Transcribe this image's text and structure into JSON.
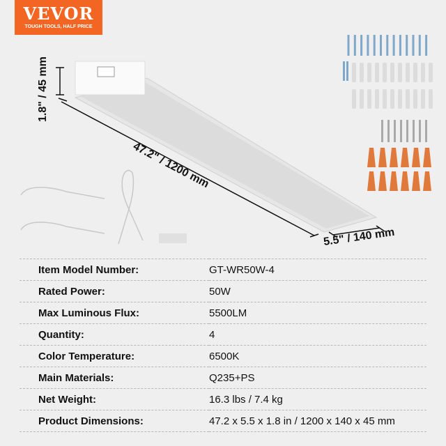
{
  "logo": {
    "brand": "VEVOR",
    "tagline": "TOUGH TOOLS, HALF PRICE",
    "color": "#f26522"
  },
  "dimensions": {
    "height": "1.8\" / 45 mm",
    "length": "47.2\" / 1200 mm",
    "width": "5.5\" / 140 mm"
  },
  "specs": [
    {
      "label": "Item Model Number:",
      "value": "GT-WR50W-4"
    },
    {
      "label": "Rated Power:",
      "value": "50W"
    },
    {
      "label": "Max Luminous Flux:",
      "value": "5500LM"
    },
    {
      "label": "Quantity:",
      "value": "4"
    },
    {
      "label": "Color Temperature:",
      "value": "6500K"
    },
    {
      "label": "Main Materials:",
      "value": "Q235+PS"
    },
    {
      "label": "Net Weight:",
      "value": "16.3 lbs / 7.4 kg"
    },
    {
      "label": "Product Dimensions:",
      "value": "47.2 x 5.5 x 1.8 in / 1200 x 140 x 45 mm"
    }
  ],
  "colors": {
    "wire_nut": "#e07a3c",
    "screw": "#7fa7c9"
  }
}
